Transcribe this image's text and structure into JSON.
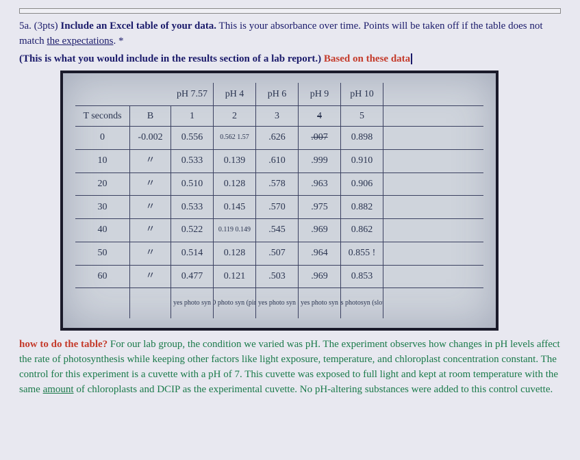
{
  "header": {
    "prefix": "5a. (3pts) ",
    "bold": "Include an Excel table of your data.",
    "rest1": " This is your absorbance over time. Points will be taken off if the table does not match ",
    "underlined": "the expectations",
    "rest2": ". *",
    "paren_open": "(This is what you would include in the results section of a lab report.) ",
    "red": "Based on these  data"
  },
  "table": {
    "col_headers_top": [
      "",
      "",
      "pH 7.57",
      "pH 4",
      "pH 6",
      "pH 9",
      "pH 10",
      ""
    ],
    "col_headers_2": [
      "T seconds",
      "B",
      "1",
      "2",
      "3",
      "4",
      "5",
      ""
    ],
    "rows": [
      [
        "0",
        "-0.002",
        "0.556",
        "0.562 1.57",
        ".626",
        ".007",
        "0.898",
        ""
      ],
      [
        "10",
        "〃",
        "0.533",
        "0.139",
        ".610",
        ".999",
        "0.910",
        ""
      ],
      [
        "20",
        "〃",
        "0.510",
        "0.128",
        ".578",
        ".963",
        "0.906",
        ""
      ],
      [
        "30",
        "〃",
        "0.533",
        "0.145",
        ".570",
        ".975",
        "0.882",
        ""
      ],
      [
        "40",
        "〃",
        "0.522",
        "0.119 0.149",
        ".545",
        ".969",
        "0.862",
        ""
      ],
      [
        "50",
        "〃",
        "0.514",
        "0.128",
        ".507",
        ".964",
        "0.855  !",
        ""
      ],
      [
        "60",
        "〃",
        "0.477",
        "0.121",
        ".503",
        ".969",
        "0.853",
        ""
      ]
    ],
    "footer": [
      "",
      "",
      "yes photo syn",
      "NO photo syn (pink)",
      "yes photo syn",
      "yes photo syn",
      "yes photosyn (slow)",
      ""
    ]
  },
  "explain": {
    "red_lead": "how to do the table?",
    "rest": " For our lab group, the condition we varied was pH. The experiment observes how changes in pH levels affect the rate of photosynthesis while keeping other factors like light exposure, temperature, and chloroplast concentration constant. The control for this experiment is a cuvette with a pH of 7. This cuvette was exposed to full light and kept at room temperature with the same ",
    "underlined": "amount",
    "rest2": " of chloroplasts and DCIP as the experimental cuvette. No pH-altering substances were added to this control cuvette."
  },
  "colors": {
    "page_bg": "#e8e8f0",
    "blue_text": "#1a1a6a",
    "red_text": "#c43a2a",
    "green_text": "#1a7a4a",
    "image_bg": "#cfd4dc",
    "image_border": "#1a1a2a",
    "hand_ink": "#2a3450"
  }
}
